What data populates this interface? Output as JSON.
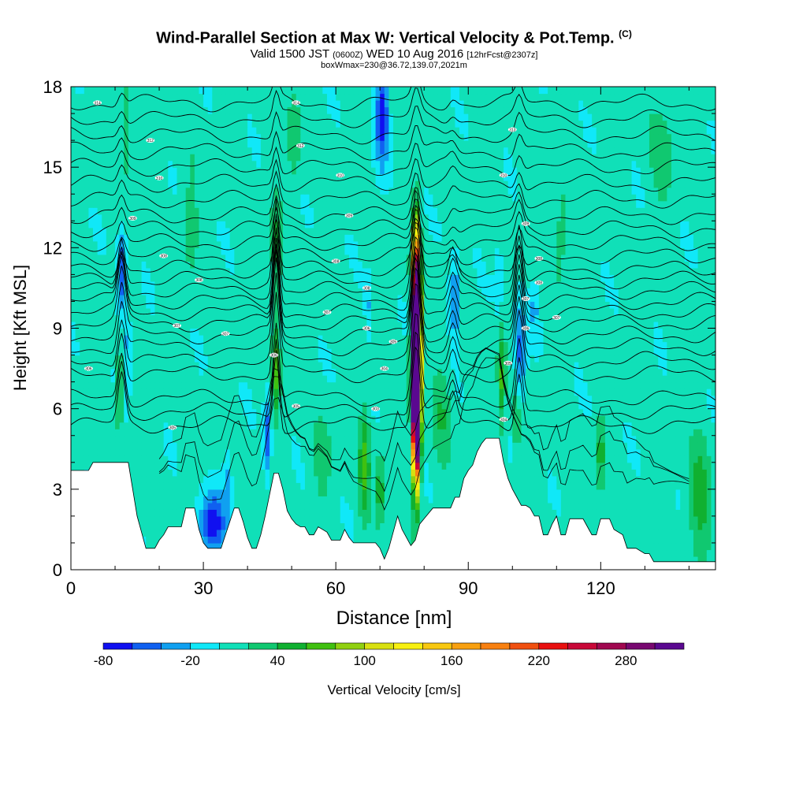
{
  "title": {
    "main": "Wind-Parallel Section at Max W: Vertical Velocity & Pot.Temp.",
    "mark": "(C)",
    "valid_a": "Valid 1500 JST",
    "valid_utc": "(0600Z)",
    "valid_b": "WED 10 Aug 2016",
    "fcst": "[12hrFcst@2307z]",
    "box": "boxWmax=230@36.72,139.07,2021m"
  },
  "chart_data": {
    "type": "heatmap",
    "xlabel": "Distance [nm]",
    "ylabel": "Height [Kft MSL]",
    "xlim": [
      0,
      146
    ],
    "ylim": [
      0,
      18
    ],
    "x_ticks": [
      0,
      30,
      60,
      90,
      120
    ],
    "y_ticks": [
      0,
      3,
      6,
      9,
      12,
      15,
      18
    ],
    "grid": false,
    "colorbar": {
      "label": "Vertical Velocity [cm/s]",
      "placement": "bottom",
      "ticks": [
        -80,
        -20,
        40,
        100,
        160,
        220,
        280
      ],
      "levels": [
        -80,
        -60,
        -40,
        -20,
        0,
        20,
        40,
        60,
        80,
        100,
        120,
        140,
        160,
        180,
        200,
        220,
        240,
        260,
        280,
        300,
        320
      ],
      "colors": [
        "#1010f0",
        "#1060f0",
        "#10a0f0",
        "#10e8f8",
        "#10e0b8",
        "#10c870",
        "#10b030",
        "#40c010",
        "#90d010",
        "#d8e010",
        "#f8f010",
        "#f8c810",
        "#f8a010",
        "#f88010",
        "#f05010",
        "#e81010",
        "#c80838",
        "#a00850",
        "#780870",
        "#5a0890"
      ]
    },
    "terrain_kft": [
      [
        0,
        3.7
      ],
      [
        4,
        3.7
      ],
      [
        5,
        4.0
      ],
      [
        13,
        4.0
      ],
      [
        14,
        3.0
      ],
      [
        15,
        2.0
      ],
      [
        16,
        1.4
      ],
      [
        17,
        0.8
      ],
      [
        19,
        0.8
      ],
      [
        20,
        1.1
      ],
      [
        21,
        1.3
      ],
      [
        22,
        1.6
      ],
      [
        25,
        1.6
      ],
      [
        26,
        2.3
      ],
      [
        28,
        2.3
      ],
      [
        29,
        1.5
      ],
      [
        30,
        1.0
      ],
      [
        31,
        0.8
      ],
      [
        34,
        0.8
      ],
      [
        35,
        1.3
      ],
      [
        36,
        1.8
      ],
      [
        37,
        2.3
      ],
      [
        38,
        2.3
      ],
      [
        39,
        1.8
      ],
      [
        40,
        1.2
      ],
      [
        41,
        0.8
      ],
      [
        42,
        0.8
      ],
      [
        43,
        1.3
      ],
      [
        44,
        2.0
      ],
      [
        45,
        2.8
      ],
      [
        46,
        3.6
      ],
      [
        47,
        3.6
      ],
      [
        48,
        3.0
      ],
      [
        49,
        2.2
      ],
      [
        50,
        1.9
      ],
      [
        51,
        1.7
      ],
      [
        52,
        1.6
      ],
      [
        53,
        1.6
      ],
      [
        54,
        1.3
      ],
      [
        55,
        1.3
      ],
      [
        56,
        1.6
      ],
      [
        58,
        1.4
      ],
      [
        59,
        1.1
      ],
      [
        61,
        1.1
      ],
      [
        62,
        1.5
      ],
      [
        63,
        1.2
      ],
      [
        64,
        1.0
      ],
      [
        69,
        1.0
      ],
      [
        70,
        0.8
      ],
      [
        71,
        0.4
      ],
      [
        72,
        0.8
      ],
      [
        73,
        1.4
      ],
      [
        74,
        2.0
      ],
      [
        75,
        1.5
      ],
      [
        76,
        1.2
      ],
      [
        77,
        0.9
      ],
      [
        78,
        1.1
      ],
      [
        79,
        1.7
      ],
      [
        80,
        1.9
      ],
      [
        82,
        2.3
      ],
      [
        86,
        2.3
      ],
      [
        87,
        2.7
      ],
      [
        88,
        2.7
      ],
      [
        89,
        3.4
      ],
      [
        90,
        3.7
      ],
      [
        91,
        3.9
      ],
      [
        92,
        4.4
      ],
      [
        93,
        4.7
      ],
      [
        94,
        4.9
      ],
      [
        97,
        4.9
      ],
      [
        98,
        4.0
      ],
      [
        99,
        3.4
      ],
      [
        100,
        3.0
      ],
      [
        101,
        2.7
      ],
      [
        102,
        2.4
      ],
      [
        103,
        2.4
      ],
      [
        104,
        2.3
      ],
      [
        105,
        2.0
      ],
      [
        106,
        2.0
      ],
      [
        107,
        1.3
      ],
      [
        108,
        1.3
      ],
      [
        109,
        1.7
      ],
      [
        110,
        2.0
      ],
      [
        111,
        1.3
      ],
      [
        112,
        1.3
      ],
      [
        113,
        1.9
      ],
      [
        116,
        1.9
      ],
      [
        117,
        1.6
      ],
      [
        118,
        1.3
      ],
      [
        119,
        1.3
      ],
      [
        120,
        1.9
      ],
      [
        122,
        1.9
      ],
      [
        123,
        1.5
      ],
      [
        125,
        1.3
      ],
      [
        126,
        0.8
      ],
      [
        128,
        0.8
      ],
      [
        130,
        0.6
      ],
      [
        131,
        0.6
      ],
      [
        132,
        0.3
      ],
      [
        146,
        0.3
      ]
    ],
    "features": [
      {
        "x": 78.2,
        "y": 8.0,
        "w": 800,
        "halfw": 0.9,
        "halfh": 3.4
      },
      {
        "x": 78.4,
        "y": 5.0,
        "w": 130,
        "halfw": 0.75,
        "halfh": 1.6
      },
      {
        "x": 11.5,
        "y": 11.0,
        "w": -65,
        "halfw": 1.0,
        "halfh": 1.6
      },
      {
        "x": 12.8,
        "y": 8.5,
        "w": -35,
        "halfw": 0.9,
        "halfh": 1.4
      },
      {
        "x": 32.0,
        "y": 1.7,
        "w": -85,
        "halfw": 2.8,
        "halfh": 1.1
      },
      {
        "x": 35.5,
        "y": 3.3,
        "w": -35,
        "halfw": 1.0,
        "halfh": 1.2
      },
      {
        "x": 44.5,
        "y": 5.0,
        "w": -55,
        "halfw": 0.8,
        "halfh": 1.6
      },
      {
        "x": 70.5,
        "y": 17.0,
        "w": -80,
        "halfw": 1.5,
        "halfh": 1.8
      },
      {
        "x": 87.0,
        "y": 10.0,
        "w": -55,
        "halfw": 1.2,
        "halfh": 1.4
      },
      {
        "x": 101.8,
        "y": 8.0,
        "w": -60,
        "halfw": 1.2,
        "halfh": 1.8
      },
      {
        "x": 67.5,
        "y": 9.8,
        "w": -25,
        "halfw": 0.8,
        "halfh": 1.2
      },
      {
        "x": 97.0,
        "y": 11.0,
        "w": -25,
        "halfw": 1.0,
        "halfh": 1.4
      },
      {
        "x": 105.0,
        "y": 9.8,
        "w": -30,
        "halfw": 1.2,
        "halfh": 1.0
      },
      {
        "x": 11.0,
        "y": 6.8,
        "w": 70,
        "halfw": 0.6,
        "halfh": 1.6
      },
      {
        "x": 46.5,
        "y": 7.5,
        "w": 60,
        "halfw": 0.9,
        "halfh": 1.8
      },
      {
        "x": 46.5,
        "y": 12.0,
        "w": 35,
        "halfw": 1.2,
        "halfh": 2.2
      },
      {
        "x": 66.5,
        "y": 4.0,
        "w": 55,
        "halfw": 1.2,
        "halfh": 2.2
      },
      {
        "x": 70.0,
        "y": 3.0,
        "w": 45,
        "halfw": 1.0,
        "halfh": 1.4
      },
      {
        "x": 97.5,
        "y": 7.0,
        "w": 55,
        "halfw": 0.9,
        "halfh": 2.0
      },
      {
        "x": 120.0,
        "y": 4.5,
        "w": 45,
        "halfw": 1.0,
        "halfh": 1.4
      },
      {
        "x": 101.0,
        "y": 5.5,
        "w": 40,
        "halfw": 0.7,
        "halfh": 1.4
      },
      {
        "x": 12.5,
        "y": 16.5,
        "w": 35,
        "halfw": 1.2,
        "halfh": 1.8
      },
      {
        "x": 50.5,
        "y": 16.0,
        "w": 30,
        "halfw": 1.5,
        "halfh": 2.0
      },
      {
        "x": 142.5,
        "y": 2.5,
        "w": 45,
        "halfw": 2.5,
        "halfh": 2.2
      },
      {
        "x": 84.0,
        "y": 6.0,
        "w": 30,
        "halfw": 2.0,
        "halfh": 2.0
      },
      {
        "x": 57.0,
        "y": 4.0,
        "w": 28,
        "halfw": 2.0,
        "halfh": 1.4
      },
      {
        "x": 27.0,
        "y": 13.0,
        "w": 25,
        "halfw": 2.0,
        "halfh": 2.0
      },
      {
        "x": 111.0,
        "y": 12.5,
        "w": 25,
        "halfw": 2.0,
        "halfh": 2.0
      },
      {
        "x": 134.0,
        "y": 15.5,
        "w": 25,
        "halfw": 2.5,
        "halfh": 2.0
      }
    ],
    "isentropes_kft": [
      5.4,
      5.9,
      6.4,
      7.3,
      7.8,
      8.3,
      8.75,
      9.2,
      9.6,
      10.0,
      10.4,
      10.8,
      11.2,
      11.7,
      12.2,
      12.7,
      13.2,
      13.8,
      14.4,
      15.0,
      15.6,
      16.2,
      16.8,
      17.4
    ],
    "isentrope_labels": [
      {
        "x": 6,
        "y": 17.4,
        "text": "314"
      },
      {
        "x": 18,
        "y": 16.0,
        "text": "312"
      },
      {
        "x": 20,
        "y": 14.6,
        "text": "310"
      },
      {
        "x": 14,
        "y": 13.1,
        "text": "309"
      },
      {
        "x": 21,
        "y": 11.7,
        "text": "308"
      },
      {
        "x": 29,
        "y": 10.8,
        "text": "308"
      },
      {
        "x": 24,
        "y": 9.1,
        "text": "307"
      },
      {
        "x": 35,
        "y": 8.8,
        "text": "307"
      },
      {
        "x": 4,
        "y": 7.5,
        "text": "306"
      },
      {
        "x": 23,
        "y": 5.3,
        "text": "305"
      },
      {
        "x": 51,
        "y": 17.4,
        "text": "314"
      },
      {
        "x": 52,
        "y": 15.8,
        "text": "312"
      },
      {
        "x": 61,
        "y": 14.7,
        "text": "310"
      },
      {
        "x": 63,
        "y": 13.2,
        "text": "309"
      },
      {
        "x": 60,
        "y": 11.5,
        "text": "308"
      },
      {
        "x": 67,
        "y": 10.5,
        "text": "308"
      },
      {
        "x": 58,
        "y": 9.6,
        "text": "307"
      },
      {
        "x": 67,
        "y": 9.0,
        "text": "306"
      },
      {
        "x": 46,
        "y": 8.0,
        "text": "306"
      },
      {
        "x": 51,
        "y": 6.1,
        "text": "305"
      },
      {
        "x": 73,
        "y": 8.5,
        "text": "305"
      },
      {
        "x": 71,
        "y": 7.5,
        "text": "304"
      },
      {
        "x": 69,
        "y": 6.0,
        "text": "303"
      },
      {
        "x": 100,
        "y": 16.4,
        "text": "313"
      },
      {
        "x": 98,
        "y": 14.7,
        "text": "310"
      },
      {
        "x": 103,
        "y": 12.9,
        "text": "309"
      },
      {
        "x": 106,
        "y": 11.6,
        "text": "308"
      },
      {
        "x": 106,
        "y": 10.7,
        "text": "308"
      },
      {
        "x": 103,
        "y": 10.1,
        "text": "307"
      },
      {
        "x": 110,
        "y": 9.4,
        "text": "307"
      },
      {
        "x": 103,
        "y": 9.0,
        "text": "306"
      },
      {
        "x": 99,
        "y": 7.7,
        "text": "305"
      },
      {
        "x": 98,
        "y": 5.6,
        "text": "304"
      }
    ]
  }
}
